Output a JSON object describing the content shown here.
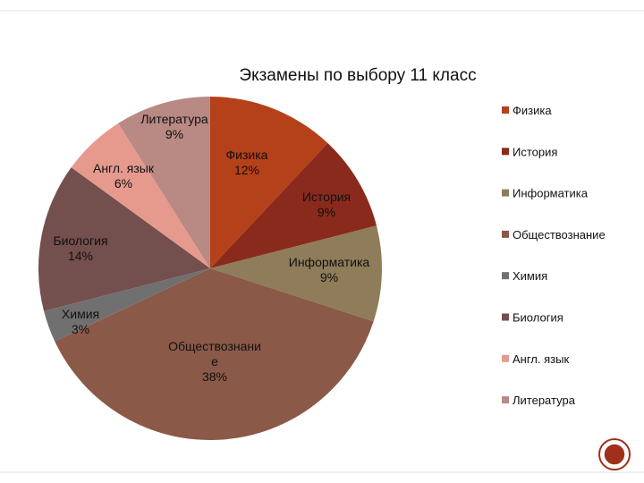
{
  "chart_data": {
    "type": "pie",
    "title": "Экзамены по выбору 11 класс",
    "start_angle_deg": 0,
    "direction": "clockwise",
    "slices": [
      {
        "name": "Физика",
        "value": 12,
        "display": "12%",
        "color": "#b5411a",
        "label_lines": [
          "Физика",
          "12%"
        ]
      },
      {
        "name": "История",
        "value": 9,
        "display": "9%",
        "color": "#8a2a1c",
        "label_lines": [
          "История",
          "9%"
        ]
      },
      {
        "name": "Информатика",
        "value": 9,
        "display": "9%",
        "color": "#8e7c5a",
        "label_lines": [
          "Информатика",
          "9%"
        ]
      },
      {
        "name": "Обществознание",
        "value": 38,
        "display": "38%",
        "color": "#8a5948",
        "label_lines": [
          "Обществознани",
          "е",
          "38%"
        ]
      },
      {
        "name": "Химия",
        "value": 3,
        "display": "3%",
        "color": "#707070",
        "label_lines": [
          "Химия",
          "3%"
        ]
      },
      {
        "name": "Биология",
        "value": 14,
        "display": "14%",
        "color": "#734f4d",
        "label_lines": [
          "Биология",
          "14%"
        ]
      },
      {
        "name": "Англ. язык",
        "value": 6,
        "display": "6%",
        "color": "#e69a8e",
        "label_lines": [
          "Англ. язык",
          "6%"
        ]
      },
      {
        "name": "Литература",
        "value": 9,
        "display": "9%",
        "color": "#b98983",
        "label_lines": [
          "Литература",
          "9%"
        ]
      }
    ],
    "legend": {
      "placement": "right",
      "items": [
        "Физика",
        "История",
        "Информатика",
        "Обществознание",
        "Химия",
        "Биология",
        "Англ. язык",
        "Литература"
      ]
    }
  }
}
